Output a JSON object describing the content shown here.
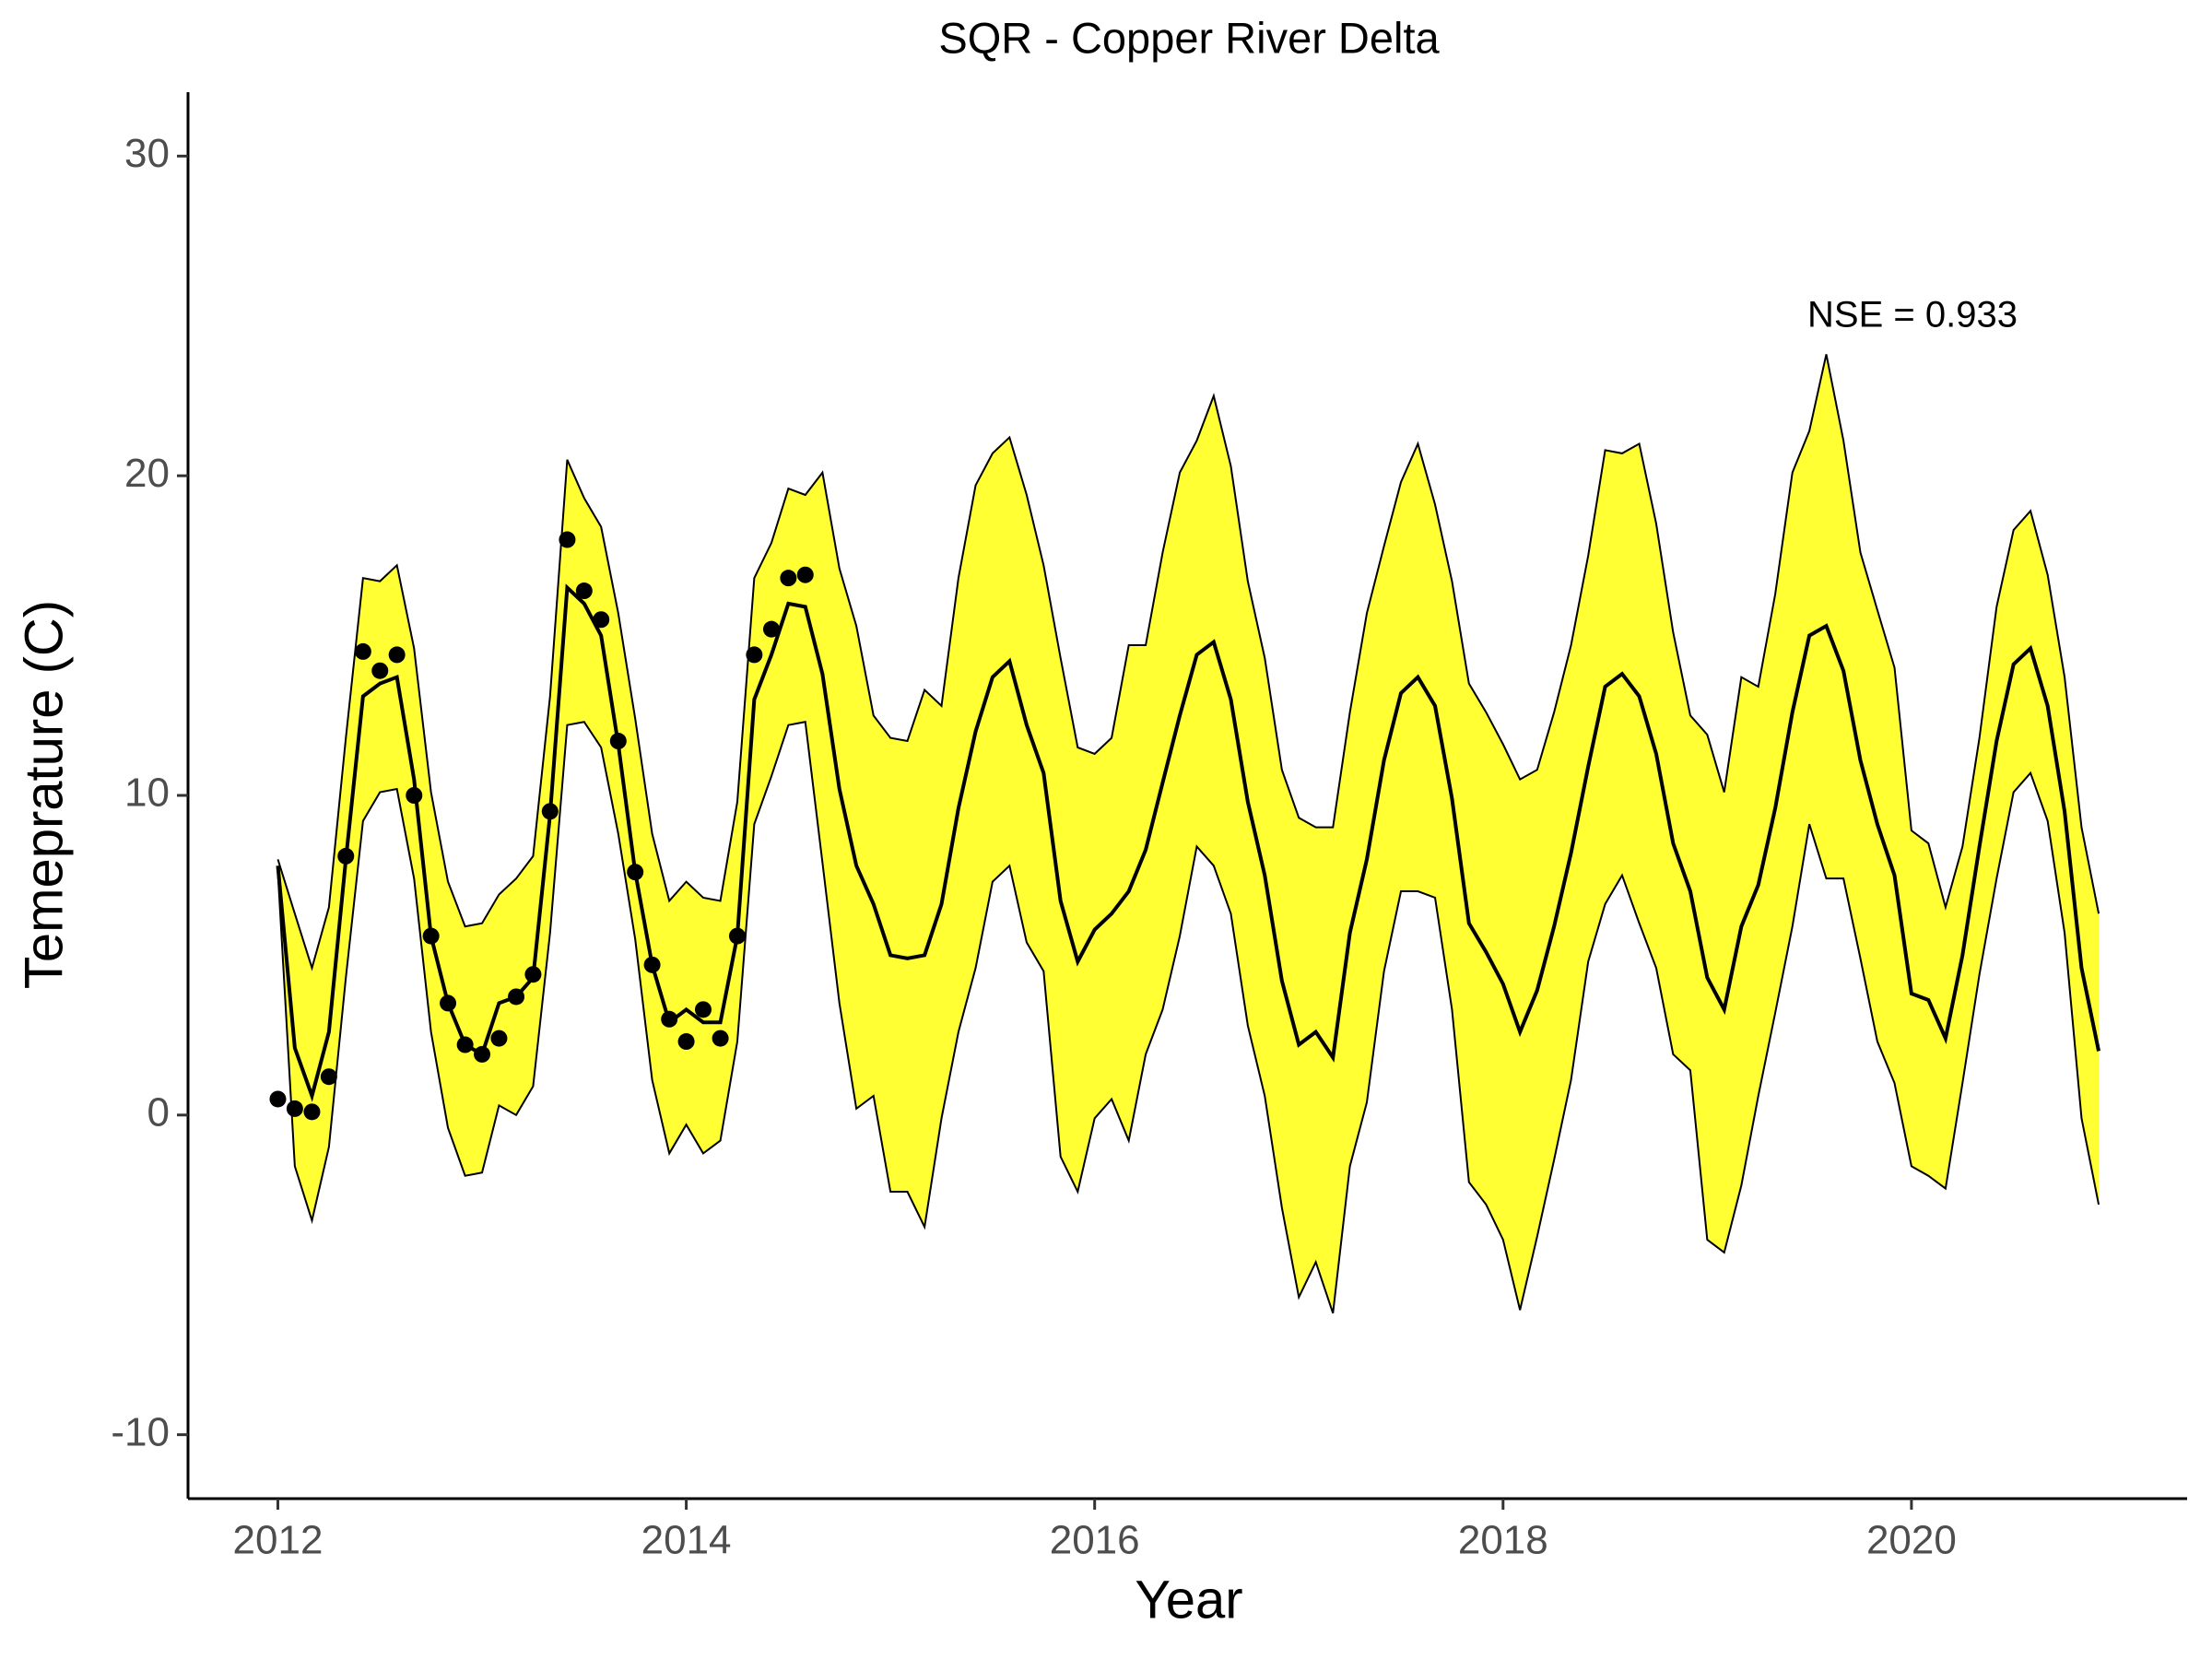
{
  "chart_data": {
    "type": "line",
    "title": "SQR - Copper River Delta",
    "x_label": "Year",
    "y_label": "Temeprature (C)",
    "annotation": "NSE = 0.933",
    "xlim": [
      2011.56,
      2021.35
    ],
    "ylim": [
      -12,
      32
    ],
    "xticks": [
      2012,
      2014,
      2016,
      2018,
      2020
    ],
    "yticks": [
      -10,
      0,
      10,
      20,
      30
    ],
    "x": [
      2012,
      2012.083,
      2012.167,
      2012.25,
      2012.333,
      2012.417,
      2012.5,
      2012.583,
      2012.667,
      2012.75,
      2012.833,
      2012.917,
      2013,
      2013.083,
      2013.167,
      2013.25,
      2013.333,
      2013.417,
      2013.5,
      2013.583,
      2013.667,
      2013.75,
      2013.833,
      2013.917,
      2014,
      2014.083,
      2014.167,
      2014.25,
      2014.333,
      2014.417,
      2014.5,
      2014.583,
      2014.667,
      2014.75,
      2014.833,
      2014.917,
      2015,
      2015.083,
      2015.167,
      2015.25,
      2015.333,
      2015.417,
      2015.5,
      2015.583,
      2015.667,
      2015.75,
      2015.833,
      2015.917,
      2016,
      2016.083,
      2016.167,
      2016.25,
      2016.333,
      2016.417,
      2016.5,
      2016.583,
      2016.667,
      2016.75,
      2016.833,
      2016.917,
      2017,
      2017.083,
      2017.167,
      2017.25,
      2017.333,
      2017.417,
      2017.5,
      2017.583,
      2017.667,
      2017.75,
      2017.833,
      2017.917,
      2018,
      2018.083,
      2018.167,
      2018.25,
      2018.333,
      2018.417,
      2018.5,
      2018.583,
      2018.667,
      2018.75,
      2018.833,
      2018.917,
      2019,
      2019.083,
      2019.167,
      2019.25,
      2019.333,
      2019.417,
      2019.5,
      2019.583,
      2019.667,
      2019.75,
      2019.833,
      2019.917,
      2020,
      2020.083,
      2020.167,
      2020.25,
      2020.333,
      2020.417,
      2020.5,
      2020.583,
      2020.667,
      2020.75,
      2020.833,
      2020.917
    ],
    "band": {
      "color": "#ffff33",
      "upper": [
        8.0,
        6.3,
        4.6,
        6.5,
        11.8,
        16.8,
        16.7,
        17.2,
        14.6,
        10.1,
        7.3,
        5.9,
        6.0,
        6.9,
        7.4,
        8.1,
        13.1,
        20.5,
        19.3,
        18.4,
        15.7,
        12.4,
        8.8,
        6.7,
        7.3,
        6.8,
        6.7,
        9.8,
        16.8,
        17.9,
        19.6,
        19.4,
        20.1,
        17.1,
        15.3,
        12.5,
        11.8,
        11.7,
        13.3,
        12.8,
        16.8,
        19.7,
        20.7,
        21.2,
        19.4,
        17.2,
        14.3,
        11.5,
        11.3,
        11.8,
        14.7,
        14.7,
        17.6,
        20.1,
        21.1,
        22.5,
        20.3,
        16.7,
        14.3,
        10.8,
        9.3,
        9.0,
        9.0,
        12.6,
        15.7,
        17.8,
        19.8,
        21.0,
        19.1,
        16.7,
        13.5,
        12.6,
        11.6,
        10.5,
        10.8,
        12.6,
        14.7,
        17.5,
        20.8,
        20.7,
        21.0,
        18.5,
        15.1,
        12.5,
        11.9,
        10.1,
        13.7,
        13.4,
        16.3,
        20.1,
        21.4,
        23.8,
        21.1,
        17.6,
        15.8,
        14.0,
        8.9,
        8.5,
        6.5,
        8.4,
        11.8,
        15.9,
        18.3,
        18.9,
        16.9,
        13.7,
        9.0,
        6.3
      ],
      "lower": [
        7.6,
        -1.6,
        -3.3,
        -1.0,
        4.3,
        9.2,
        10.1,
        10.2,
        7.4,
        2.6,
        -0.4,
        -1.9,
        -1.8,
        0.3,
        0.0,
        0.9,
        5.7,
        12.2,
        12.3,
        11.5,
        8.8,
        5.5,
        1.1,
        -1.2,
        -0.3,
        -1.2,
        -0.8,
        2.3,
        9.1,
        10.6,
        12.2,
        12.3,
        7.9,
        3.5,
        0.2,
        0.6,
        -2.4,
        -2.4,
        -3.5,
        -0.1,
        2.6,
        4.6,
        7.3,
        7.8,
        5.4,
        4.5,
        -1.3,
        -2.4,
        -0.1,
        0.5,
        -0.8,
        1.9,
        3.3,
        5.6,
        8.4,
        7.8,
        6.3,
        2.8,
        0.6,
        -2.9,
        -5.7,
        -4.6,
        -6.2,
        -1.6,
        0.4,
        4.5,
        7.0,
        7.0,
        6.8,
        3.3,
        -2.1,
        -2.8,
        -3.9,
        -6.1,
        -3.8,
        -1.4,
        1.1,
        4.8,
        6.6,
        7.5,
        6.0,
        4.6,
        1.9,
        1.4,
        -3.9,
        -4.3,
        -2.2,
        0.6,
        3.2,
        5.9,
        9.1,
        7.4,
        7.4,
        4.9,
        2.3,
        1.0,
        -1.6,
        -1.9,
        -2.3,
        1.0,
        4.4,
        7.4,
        10.1,
        10.7,
        9.2,
        5.7,
        -0.1,
        -2.8
      ]
    },
    "series": [
      {
        "color": "#000000",
        "values": [
          7.8,
          2.1,
          0.6,
          2.6,
          8.0,
          13.1,
          13.5,
          13.7,
          10.5,
          5.6,
          3.5,
          2.2,
          1.9,
          3.5,
          3.7,
          4.3,
          9.4,
          16.5,
          16.0,
          15.0,
          11.6,
          7.6,
          4.7,
          2.9,
          3.3,
          2.9,
          2.9,
          5.6,
          13.0,
          14.4,
          16.0,
          15.9,
          13.8,
          10.2,
          7.8,
          6.6,
          5.0,
          4.9,
          5.0,
          6.6,
          9.6,
          12.0,
          13.7,
          14.2,
          12.2,
          10.7,
          6.7,
          4.8,
          5.8,
          6.3,
          7.0,
          8.3,
          10.4,
          12.5,
          14.4,
          14.8,
          13.0,
          9.8,
          7.5,
          4.2,
          2.2,
          2.6,
          1.8,
          5.7,
          8.0,
          11.1,
          13.2,
          13.7,
          12.8,
          9.9,
          6.0,
          5.1,
          4.1,
          2.6,
          3.9,
          5.9,
          8.2,
          10.9,
          13.4,
          13.8,
          13.1,
          11.3,
          8.5,
          7.0,
          4.3,
          3.3,
          5.9,
          7.2,
          9.6,
          12.6,
          15.0,
          15.3,
          13.9,
          11.1,
          9.1,
          7.5,
          3.8,
          3.6,
          2.4,
          5.0,
          8.4,
          11.7,
          14.1,
          14.6,
          12.8,
          9.5,
          4.6,
          2.0
        ]
      }
    ],
    "points": {
      "color": "#000000",
      "x": [
        2012,
        2012.083,
        2012.167,
        2012.25,
        2012.333,
        2012.417,
        2012.5,
        2012.583,
        2012.667,
        2012.75,
        2012.833,
        2012.917,
        2013,
        2013.083,
        2013.167,
        2013.25,
        2013.333,
        2013.417,
        2013.5,
        2013.583,
        2013.667,
        2013.75,
        2013.833,
        2013.917,
        2014,
        2014.083,
        2014.167,
        2014.25,
        2014.333,
        2014.417,
        2014.5,
        2014.583
      ],
      "values": [
        0.5,
        0.2,
        0.1,
        1.2,
        8.1,
        14.5,
        13.9,
        14.4,
        10.0,
        5.6,
        3.5,
        2.2,
        1.9,
        2.4,
        3.7,
        4.4,
        9.5,
        18.0,
        16.4,
        15.5,
        11.7,
        7.6,
        4.7,
        3.0,
        2.3,
        3.3,
        2.4,
        5.6,
        14.4,
        15.2,
        16.8,
        16.9
      ]
    }
  }
}
